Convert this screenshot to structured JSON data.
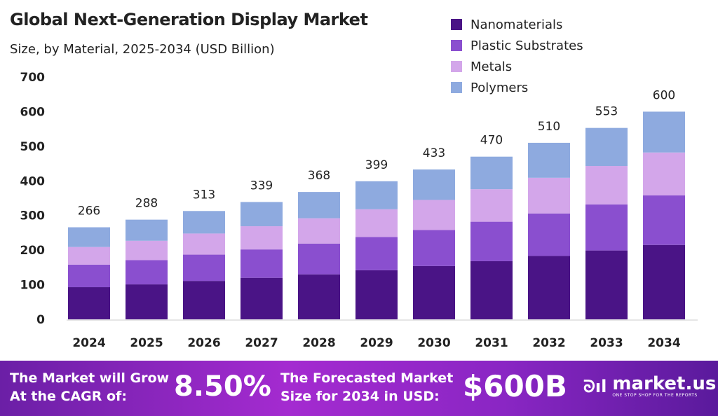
{
  "chart_data": {
    "type": "bar",
    "stacked": true,
    "title": "Global Next-Generation Display Market",
    "subtitle": "Size, by Material, 2025-2034 (USD Billion)",
    "categories": [
      "2024",
      "2025",
      "2026",
      "2027",
      "2028",
      "2029",
      "2030",
      "2031",
      "2032",
      "2033",
      "2034"
    ],
    "series": [
      {
        "name": "Nanomaterials",
        "color": "#4a1486",
        "values": [
          93,
          101,
          111,
          120,
          130,
          142,
          154,
          168,
          183,
          199,
          215
        ]
      },
      {
        "name": "Plastic Substrates",
        "color": "#8a4fcf",
        "values": [
          65,
          70,
          76,
          82,
          89,
          96,
          104,
          114,
          123,
          133,
          143
        ]
      },
      {
        "name": "Metals",
        "color": "#d3a6ea",
        "values": [
          51,
          56,
          61,
          67,
          73,
          80,
          87,
          94,
          103,
          111,
          124
        ]
      },
      {
        "name": "Polymers",
        "color": "#8eaadf",
        "values": [
          57,
          61,
          65,
          70,
          76,
          81,
          88,
          94,
          101,
          110,
          118
        ]
      }
    ],
    "totals": [
      "266",
      "288",
      "313",
      "339",
      "368",
      "399",
      "433",
      "470",
      "510",
      "553",
      "600"
    ],
    "yticks": [
      "0",
      "100",
      "200",
      "300",
      "400",
      "500",
      "600",
      "700"
    ],
    "ylim": [
      0,
      700
    ],
    "legend_position": "top-right",
    "grid": false
  },
  "banner": {
    "cagr_label_1": "The Market will Grow",
    "cagr_label_2": "At the CAGR of:",
    "cagr_value": "8.50%",
    "forecast_label_1": "The Forecasted Market",
    "forecast_label_2": "Size for 2034 in USD:",
    "forecast_value": "$600B",
    "logo_name": "market.us",
    "logo_tagline": "ONE STOP SHOP FOR THE REPORTS"
  }
}
